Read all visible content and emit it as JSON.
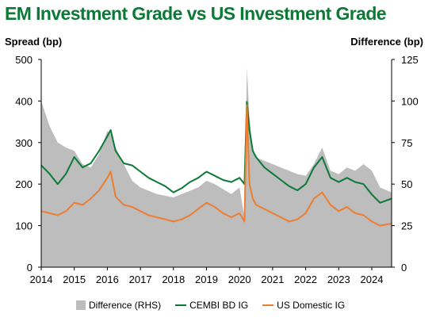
{
  "chart_data": {
    "type": "line",
    "title": "EM Investment Grade vs US Investment Grade",
    "ylabel": "Spread (bp)",
    "y2label": "Difference (bp)",
    "ylim": [
      0,
      500
    ],
    "y2lim": [
      0,
      125
    ],
    "xlim": [
      2014,
      2024.6
    ],
    "x_ticks": [
      "2014",
      "2015",
      "2016",
      "2017",
      "2018",
      "2019",
      "2020",
      "2021",
      "2022",
      "2023",
      "2024"
    ],
    "y_ticks": [
      0,
      100,
      200,
      300,
      400,
      500
    ],
    "y2_ticks": [
      0,
      25,
      50,
      75,
      100,
      125
    ],
    "legend_position": "bottom",
    "x": [
      2014.0,
      2014.25,
      2014.5,
      2014.75,
      2015.0,
      2015.25,
      2015.5,
      2015.75,
      2016.0,
      2016.1,
      2016.25,
      2016.5,
      2016.75,
      2017.0,
      2017.25,
      2017.5,
      2017.75,
      2018.0,
      2018.25,
      2018.5,
      2018.75,
      2019.0,
      2019.25,
      2019.5,
      2019.75,
      2020.0,
      2020.15,
      2020.22,
      2020.3,
      2020.4,
      2020.5,
      2020.75,
      2021.0,
      2021.25,
      2021.5,
      2021.75,
      2022.0,
      2022.25,
      2022.5,
      2022.75,
      2023.0,
      2023.25,
      2023.5,
      2023.75,
      2024.0,
      2024.25,
      2024.6
    ],
    "series": [
      {
        "name": "Difference (RHS)",
        "style": "area",
        "axis": "right",
        "color": "#bdbdbd",
        "values": [
          100,
          85,
          75,
          72,
          70,
          62,
          60,
          68,
          82,
          80,
          72,
          62,
          52,
          48,
          46,
          44,
          43,
          42,
          44,
          46,
          48,
          52,
          50,
          47,
          44,
          48,
          30,
          120,
          90,
          70,
          66,
          64,
          62,
          60,
          58,
          56,
          55,
          62,
          72,
          58,
          56,
          60,
          58,
          62,
          58,
          48,
          45
        ]
      },
      {
        "name": "CEMBI BD IG",
        "style": "line",
        "axis": "left",
        "color": "#0b7a36",
        "values": [
          245,
          225,
          200,
          225,
          265,
          240,
          250,
          280,
          315,
          330,
          280,
          250,
          245,
          230,
          215,
          205,
          195,
          180,
          190,
          205,
          215,
          230,
          220,
          210,
          205,
          215,
          200,
          398,
          330,
          280,
          265,
          240,
          225,
          210,
          195,
          185,
          200,
          240,
          265,
          215,
          205,
          215,
          205,
          200,
          175,
          155,
          165
        ]
      },
      {
        "name": "US Domestic IG",
        "style": "line",
        "axis": "left",
        "color": "#ed7d31",
        "values": [
          135,
          130,
          125,
          135,
          155,
          150,
          165,
          185,
          215,
          230,
          170,
          150,
          145,
          135,
          125,
          120,
          115,
          110,
          115,
          125,
          140,
          155,
          145,
          130,
          120,
          130,
          110,
          390,
          200,
          165,
          150,
          140,
          130,
          120,
          110,
          115,
          130,
          165,
          180,
          150,
          135,
          145,
          130,
          125,
          110,
          100,
          105
        ]
      }
    ]
  }
}
